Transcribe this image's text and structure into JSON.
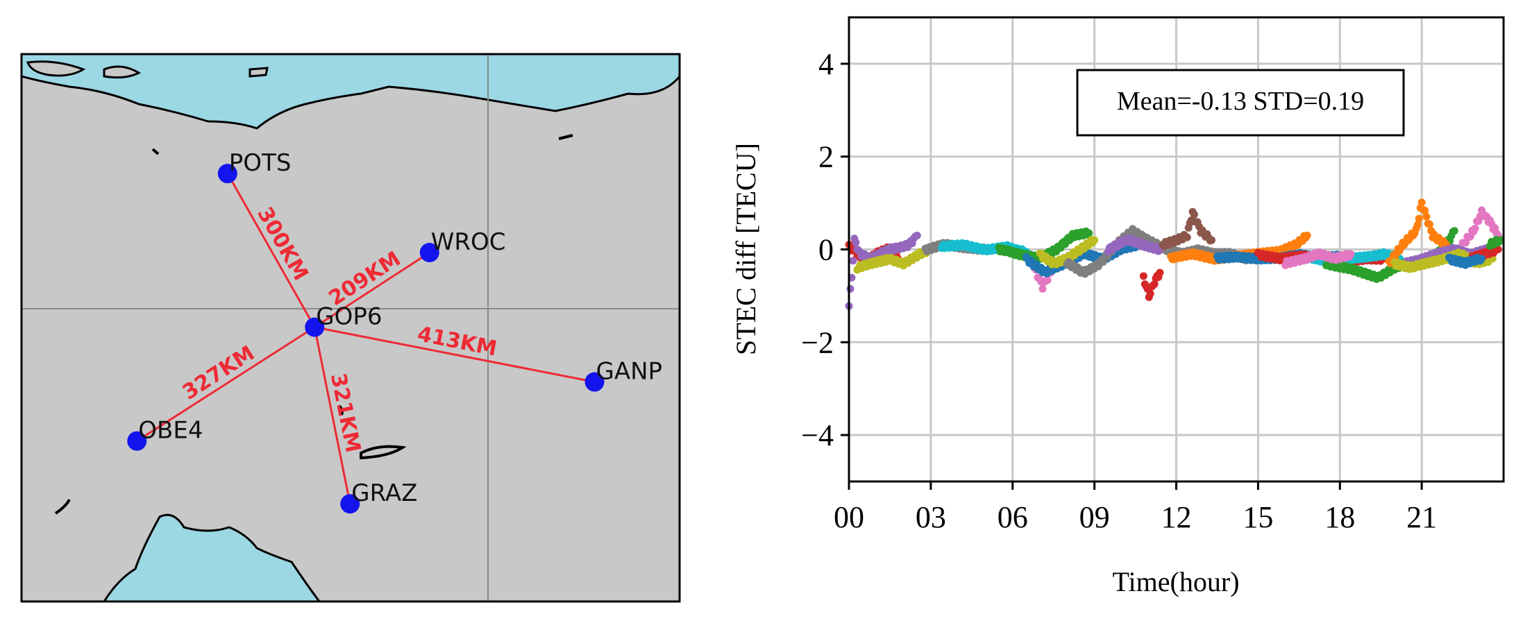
{
  "map_panel": {
    "stations": [
      {
        "name": "POTS",
        "lon": 13.07,
        "lat": 52.38
      },
      {
        "name": "WROC",
        "lon": 17.06,
        "lat": 51.11
      },
      {
        "name": "GOP6",
        "lon": 14.79,
        "lat": 49.91
      },
      {
        "name": "GANP",
        "lon": 20.32,
        "lat": 49.03
      },
      {
        "name": "OBE4",
        "lon": 11.28,
        "lat": 48.08
      },
      {
        "name": "GRAZ",
        "lon": 15.49,
        "lat": 47.07
      }
    ],
    "baselines": [
      {
        "from": "GOP6",
        "to": "POTS",
        "label": "300KM"
      },
      {
        "from": "GOP6",
        "to": "WROC",
        "label": "209KM"
      },
      {
        "from": "GOP6",
        "to": "GANP",
        "label": "413KM"
      },
      {
        "from": "GOP6",
        "to": "OBE4",
        "label": "327KM"
      },
      {
        "from": "GOP6",
        "to": "GRAZ",
        "label": "321KM"
      }
    ],
    "colors": {
      "land": "#c8c8c8",
      "sea": "#9cd7e4",
      "station": "#1414ee",
      "baseline": "#ee2a35",
      "coast": "#000000"
    }
  },
  "chart_data": {
    "type": "scatter",
    "title": "",
    "xlabel": "Time(hour)",
    "ylabel": "STEC diff [TECU]",
    "xlim": [
      0,
      24
    ],
    "ylim": [
      -5,
      5
    ],
    "xticks": [
      0,
      3,
      6,
      9,
      12,
      15,
      18,
      21
    ],
    "xtick_labels": [
      "00",
      "03",
      "06",
      "09",
      "12",
      "15",
      "18",
      "21"
    ],
    "yticks": [
      -4,
      -2,
      0,
      2,
      4
    ],
    "ytick_labels": [
      "−4",
      "−2",
      "0",
      "2",
      "4"
    ],
    "grid": true,
    "annotation": "Mean=-0.13 STD=0.19",
    "annotation_position": "top-right",
    "series_colors": [
      "#1f77b4",
      "#ff7f0e",
      "#2ca02c",
      "#d62728",
      "#9467bd",
      "#8c564b",
      "#e377c2",
      "#7f7f7f",
      "#bcbd22",
      "#17becf"
    ],
    "series": [
      {
        "color": "#d62728",
        "x": [
          0.0,
          0.3,
          0.6,
          1.0,
          1.4,
          1.8
        ],
        "y": [
          0.1,
          -0.1,
          -0.3,
          -0.1,
          0.0,
          -0.2
        ]
      },
      {
        "color": "#9467bd",
        "x": [
          0.0,
          0.1,
          0.2,
          0.4,
          0.8,
          1.5,
          2.2,
          2.5
        ],
        "y": [
          -1.2,
          -0.6,
          0.2,
          -0.1,
          -0.2,
          0.0,
          0.1,
          0.3
        ]
      },
      {
        "color": "#bcbd22",
        "x": [
          0.3,
          0.9,
          1.5,
          2.0,
          2.6,
          3.0
        ],
        "y": [
          -0.4,
          -0.3,
          -0.2,
          -0.3,
          -0.1,
          0.0
        ]
      },
      {
        "color": "#7f7f7f",
        "x": [
          2.8,
          3.5,
          4.2,
          5.0
        ],
        "y": [
          0.0,
          0.1,
          0.05,
          0.0
        ]
      },
      {
        "color": "#17becf",
        "x": [
          3.4,
          4.2,
          5.0,
          5.8,
          6.5
        ],
        "y": [
          0.05,
          0.1,
          0.0,
          0.05,
          -0.05
        ]
      },
      {
        "color": "#2ca02c",
        "x": [
          5.5,
          6.2,
          7.0,
          7.6,
          8.2,
          8.8
        ],
        "y": [
          0.0,
          -0.1,
          -0.2,
          0.0,
          0.3,
          0.35
        ]
      },
      {
        "color": "#e377c2",
        "x": [
          6.8,
          7.1,
          7.4
        ],
        "y": [
          -0.4,
          -0.8,
          -0.5
        ]
      },
      {
        "color": "#1f77b4",
        "x": [
          6.5,
          7.2,
          7.9,
          8.6,
          9.3,
          10.0,
          10.6
        ],
        "y": [
          -0.2,
          -0.5,
          -0.3,
          -0.1,
          -0.2,
          0.0,
          0.1
        ]
      },
      {
        "color": "#bcbd22",
        "x": [
          7.0,
          7.5,
          8.0,
          8.5,
          9.0
        ],
        "y": [
          -0.1,
          -0.3,
          -0.2,
          0.0,
          0.2
        ]
      },
      {
        "color": "#7f7f7f",
        "x": [
          8.0,
          8.6,
          9.2,
          9.8,
          10.4,
          11.0,
          11.6,
          12.2,
          12.8,
          13.4,
          14.0,
          14.6,
          15.2
        ],
        "y": [
          -0.3,
          -0.5,
          -0.3,
          0.1,
          0.4,
          0.2,
          0.0,
          -0.1,
          0.0,
          -0.1,
          -0.1,
          -0.2,
          -0.1
        ]
      },
      {
        "color": "#9467bd",
        "x": [
          9.5,
          10.2,
          10.8,
          11.4
        ],
        "y": [
          0.0,
          0.2,
          0.1,
          0.0
        ]
      },
      {
        "color": "#d62728",
        "x": [
          10.8,
          11.0,
          11.2,
          11.4
        ],
        "y": [
          -0.6,
          -1.0,
          -0.7,
          -0.5
        ]
      },
      {
        "color": "#8c564b",
        "x": [
          11.5,
          12.0,
          12.4,
          12.6,
          12.9,
          13.3
        ],
        "y": [
          0.1,
          0.2,
          0.3,
          0.8,
          0.4,
          0.2
        ]
      },
      {
        "color": "#ff7f0e",
        "x": [
          11.8,
          12.6,
          13.4,
          14.2,
          15.0,
          15.8,
          16.4,
          16.8
        ],
        "y": [
          -0.2,
          -0.1,
          -0.2,
          -0.15,
          -0.1,
          -0.05,
          0.1,
          0.3
        ]
      },
      {
        "color": "#1f77b4",
        "x": [
          13.5,
          14.2,
          15.0,
          15.8,
          16.5,
          17.2,
          18.0
        ],
        "y": [
          -0.2,
          -0.15,
          -0.2,
          -0.2,
          -0.1,
          -0.2,
          -0.15
        ]
      },
      {
        "color": "#d62728",
        "x": [
          15.0,
          15.8,
          16.6,
          17.4,
          18.2,
          19.0,
          19.6
        ],
        "y": [
          -0.1,
          -0.2,
          -0.15,
          -0.2,
          -0.25,
          -0.2,
          -0.2
        ]
      },
      {
        "color": "#17becf",
        "x": [
          17.0,
          17.8,
          18.4,
          19.0,
          19.6,
          20.2
        ],
        "y": [
          -0.2,
          -0.3,
          -0.2,
          -0.15,
          -0.1,
          -0.2
        ]
      },
      {
        "color": "#2ca02c",
        "x": [
          17.5,
          18.2,
          18.8,
          19.4,
          20.0,
          20.6,
          21.2,
          21.8,
          22.2
        ],
        "y": [
          -0.3,
          -0.4,
          -0.5,
          -0.6,
          -0.4,
          -0.3,
          -0.2,
          0.0,
          0.4
        ]
      },
      {
        "color": "#e377c2",
        "x": [
          16.0,
          16.8,
          17.2,
          17.8,
          18.4
        ],
        "y": [
          -0.3,
          -0.2,
          -0.1,
          -0.2,
          -0.1
        ]
      },
      {
        "color": "#ff7f0e",
        "x": [
          19.8,
          20.3,
          20.8,
          21.0,
          21.4,
          21.9
        ],
        "y": [
          -0.3,
          0.1,
          0.4,
          1.0,
          0.3,
          0.1
        ]
      },
      {
        "color": "#9467bd",
        "x": [
          20.4,
          21.0,
          21.6,
          22.2,
          22.8,
          23.5
        ],
        "y": [
          -0.3,
          -0.2,
          -0.1,
          0.0,
          -0.1,
          0.0
        ]
      },
      {
        "color": "#bcbd22",
        "x": [
          20.0,
          20.6,
          21.2,
          21.8,
          22.4,
          23.0,
          23.6
        ],
        "y": [
          -0.3,
          -0.4,
          -0.3,
          -0.2,
          -0.1,
          -0.3,
          -0.2
        ]
      },
      {
        "color": "#e377c2",
        "x": [
          22.5,
          22.9,
          23.2,
          23.5,
          23.8
        ],
        "y": [
          0.1,
          0.4,
          0.8,
          0.6,
          0.3
        ]
      },
      {
        "color": "#d62728",
        "x": [
          22.8,
          23.3,
          23.8
        ],
        "y": [
          -0.2,
          -0.1,
          0.0
        ]
      },
      {
        "color": "#1f77b4",
        "x": [
          22.0,
          22.6,
          23.2
        ],
        "y": [
          -0.2,
          -0.3,
          -0.2
        ]
      },
      {
        "color": "#2ca02c",
        "x": [
          23.5,
          23.9
        ],
        "y": [
          0.1,
          0.2
        ]
      }
    ]
  }
}
